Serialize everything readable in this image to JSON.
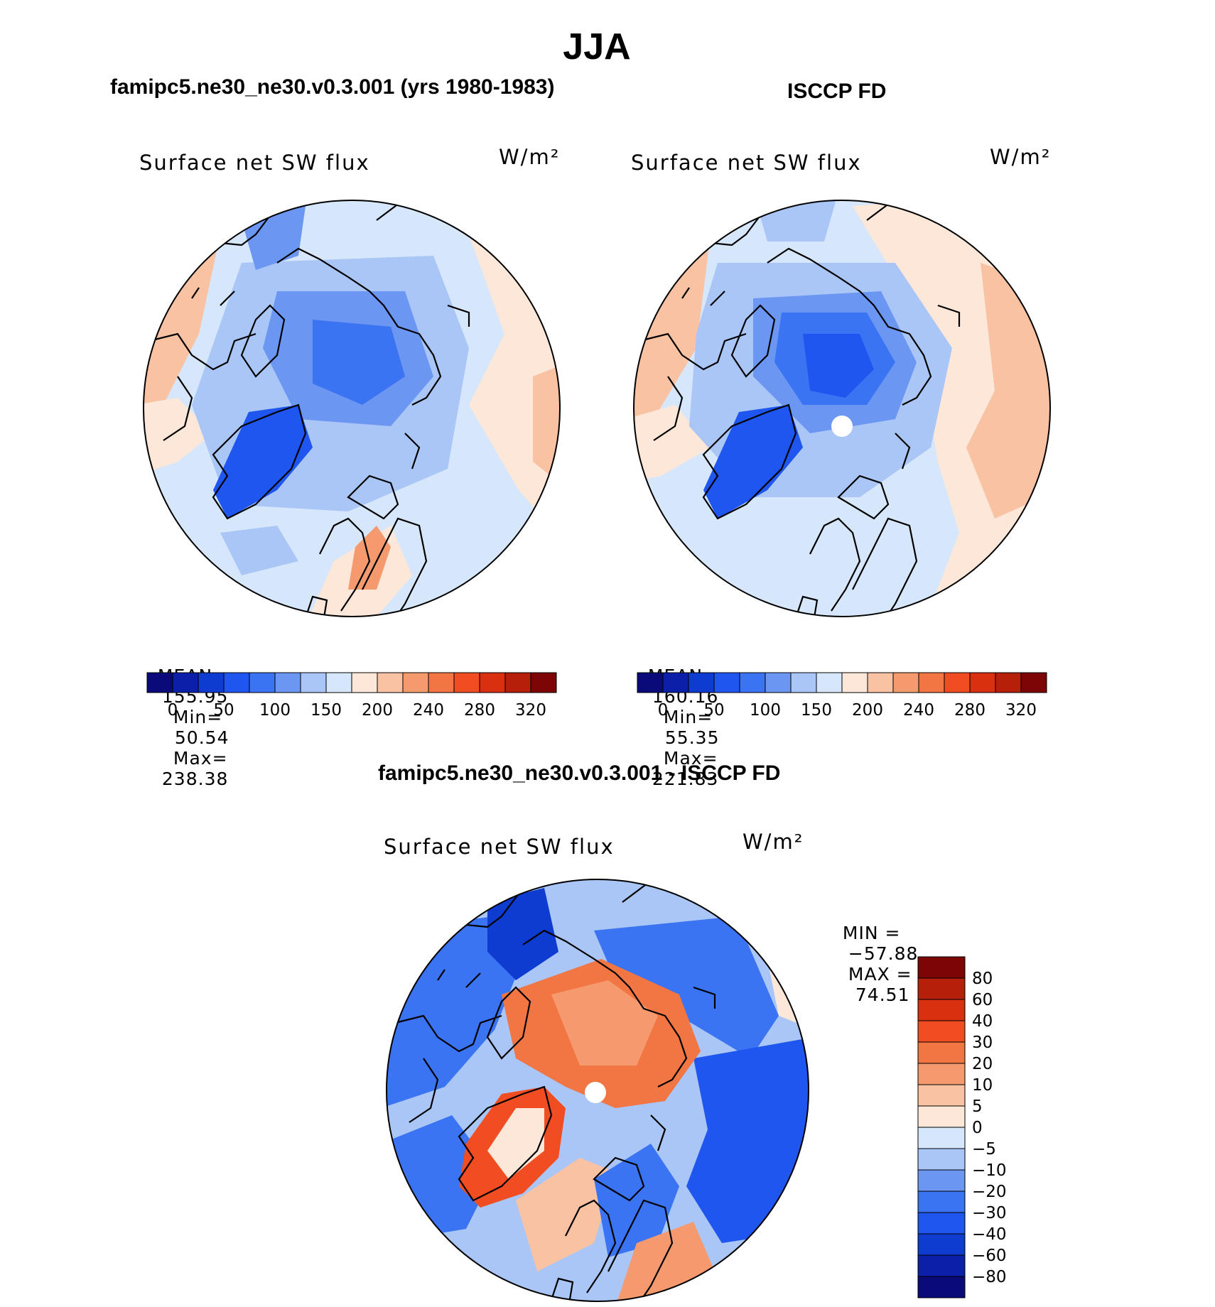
{
  "title": "JJA",
  "panels": [
    {
      "heading": "famipc5.ne30_ne30.v0.3.001 (yrs 1980-1983)",
      "variable": "Surface net SW flux",
      "units": "W/m²",
      "stats": {
        "mean_label": "MEAN=",
        "mean": "155.95",
        "min_label": "Min=",
        "min": "50.54",
        "max_label": "Max=",
        "max": "238.38"
      },
      "colorbar": {
        "colors": [
          "#0a0a7a",
          "#0b1fa8",
          "#0f3cd0",
          "#1e56ef",
          "#3b74f2",
          "#6b97f3",
          "#a9c6f6",
          "#d7e7fb",
          "#fde7d8",
          "#f9c2a3",
          "#f59a6e",
          "#f27544",
          "#f04e22",
          "#d9310f",
          "#b61f0a",
          "#7d0505"
        ],
        "labels": [
          "0",
          "50",
          "100",
          "150",
          "200",
          "240",
          "280",
          "320"
        ]
      }
    },
    {
      "heading": "ISCCP FD",
      "variable": "Surface net SW flux",
      "units": "W/m²",
      "stats": {
        "mean_label": "MEAN=",
        "mean": "160.16",
        "min_label": "Min=",
        "min": "55.35",
        "max_label": "Max=",
        "max": "221.83"
      },
      "colorbar": {
        "colors": [
          "#0a0a7a",
          "#0b1fa8",
          "#0f3cd0",
          "#1e56ef",
          "#3b74f2",
          "#6b97f3",
          "#a9c6f6",
          "#d7e7fb",
          "#fde7d8",
          "#f9c2a3",
          "#f59a6e",
          "#f27544",
          "#f04e22",
          "#d9310f",
          "#b61f0a",
          "#7d0505"
        ],
        "labels": [
          "0",
          "50",
          "100",
          "150",
          "200",
          "240",
          "280",
          "320"
        ]
      }
    },
    {
      "heading": "famipc5.ne30_ne30.v0.3.001 - ISCCP FD",
      "variable": "Surface net SW flux",
      "units": "W/m²",
      "stats": {
        "min_label": "MIN =",
        "min": "−57.88",
        "max_label": "MAX =",
        "max": "74.51"
      },
      "colorbar": {
        "colors": [
          "#7d0505",
          "#b61f0a",
          "#d9310f",
          "#f04e22",
          "#f27544",
          "#f59a6e",
          "#f9c2a3",
          "#fde7d8",
          "#d7e7fb",
          "#a9c6f6",
          "#6b97f3",
          "#3b74f2",
          "#1e56ef",
          "#0f3cd0",
          "#0b1fa8",
          "#0a0a7a"
        ],
        "labels": [
          "80",
          "60",
          "40",
          "30",
          "20",
          "10",
          "5",
          "0",
          "−5",
          "−10",
          "−20",
          "−30",
          "−40",
          "−60",
          "−80"
        ]
      }
    }
  ]
}
